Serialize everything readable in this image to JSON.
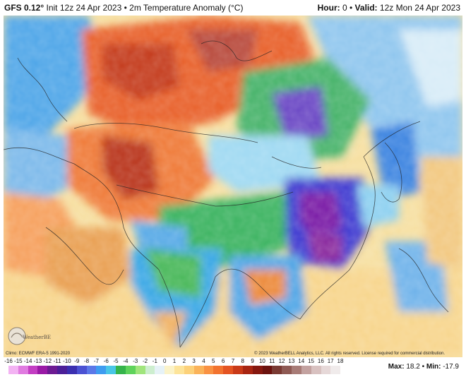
{
  "header": {
    "model": "GFS 0.12°",
    "init": "Init 12z 24 Apr 2023",
    "separator": "•",
    "product": "2m Temperature Anomaly (°C)",
    "hour_label": "Hour:",
    "hour_value": "0",
    "valid_label": "Valid:",
    "valid_value": "12z Mon 24 Apr 2023"
  },
  "footer": {
    "climo": "Climo: ECMWF ERA-5 1991-2020",
    "copyright": "© 2023 WeatherBELL Analytics, LLC. All rights reserved. License required for commercial distribution.",
    "max_label": "Max:",
    "max_value": "18.2",
    "min_label": "Min:",
    "min_value": "-17.9",
    "logo_text": "WeatherBELL"
  },
  "scale": {
    "labels": [
      "-16",
      "-15",
      "-14",
      "-13",
      "-12",
      "-11",
      "-10",
      "-9",
      "-8",
      "-7",
      "-6",
      "-5",
      "-4",
      "-3",
      "-2",
      "-1",
      "0",
      "1",
      "2",
      "3",
      "4",
      "5",
      "6",
      "7",
      "8",
      "9",
      "10",
      "11",
      "12",
      "13",
      "14",
      "15",
      "16",
      "17",
      "18"
    ],
    "colors": [
      "#f3b3f3",
      "#e07be0",
      "#c33ec3",
      "#9a1aa6",
      "#6d1b93",
      "#4c1f98",
      "#3b2fb0",
      "#4b52d3",
      "#5b78e8",
      "#3e9cf0",
      "#49c6e6",
      "#35b44b",
      "#5fd35b",
      "#a0e57c",
      "#cdeecf",
      "#e6f2f7",
      "#fbf3c9",
      "#fde49a",
      "#fcd17a",
      "#fab35a",
      "#f99243",
      "#f2732f",
      "#e45422",
      "#c93a18",
      "#a82512",
      "#86180f",
      "#6b120e",
      "#7a3a33",
      "#8f5a54",
      "#a87c77",
      "#c3a2a0",
      "#d8c1c0",
      "#e6d8d8",
      "#f0ebeb"
    ]
  },
  "map": {
    "ocean_color": "#f6dfa0",
    "land_base_color": "#f49a52"
  }
}
